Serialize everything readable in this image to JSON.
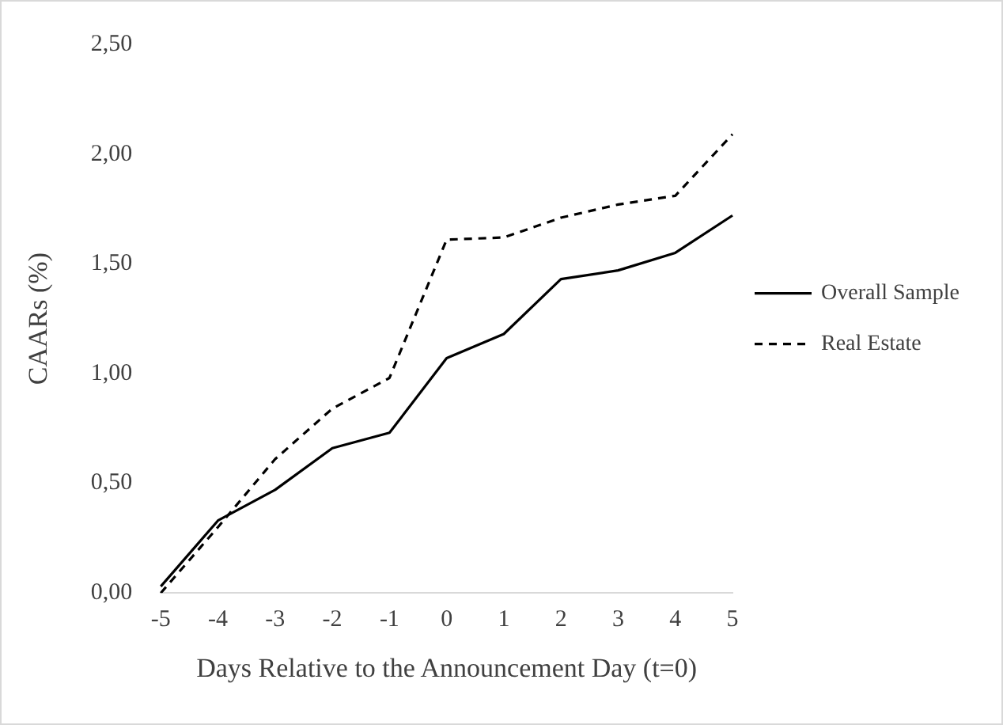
{
  "chart_data": {
    "type": "line",
    "xlabel": "Days Relative to the Announcement Day (t=0)",
    "ylabel": "CAARs (%)",
    "categories": [
      "-5",
      "-4",
      "-3",
      "-2",
      "-1",
      "0",
      "1",
      "2",
      "3",
      "4",
      "5"
    ],
    "series": [
      {
        "name": "Overall Sample",
        "color": "#000000",
        "line_style": "solid",
        "values": [
          0.03,
          0.33,
          0.47,
          0.66,
          0.73,
          1.07,
          1.18,
          1.43,
          1.47,
          1.55,
          1.72
        ]
      },
      {
        "name": "Real Estate",
        "color": "#000000",
        "line_style": "dashed",
        "values": [
          0.0,
          0.3,
          0.61,
          0.84,
          0.98,
          1.61,
          1.62,
          1.71,
          1.77,
          1.81,
          2.09
        ]
      }
    ],
    "ylim": [
      0,
      2.5
    ],
    "yticks": [
      {
        "value": 0,
        "label": "0,00"
      },
      {
        "value": 0.5,
        "label": "0,50"
      },
      {
        "value": 1,
        "label": "1,00"
      },
      {
        "value": 1.5,
        "label": "1,50"
      },
      {
        "value": 2,
        "label": "2,00"
      },
      {
        "value": 2.5,
        "label": "2,50"
      }
    ],
    "grid": false,
    "legend": "right",
    "marker": "none"
  }
}
